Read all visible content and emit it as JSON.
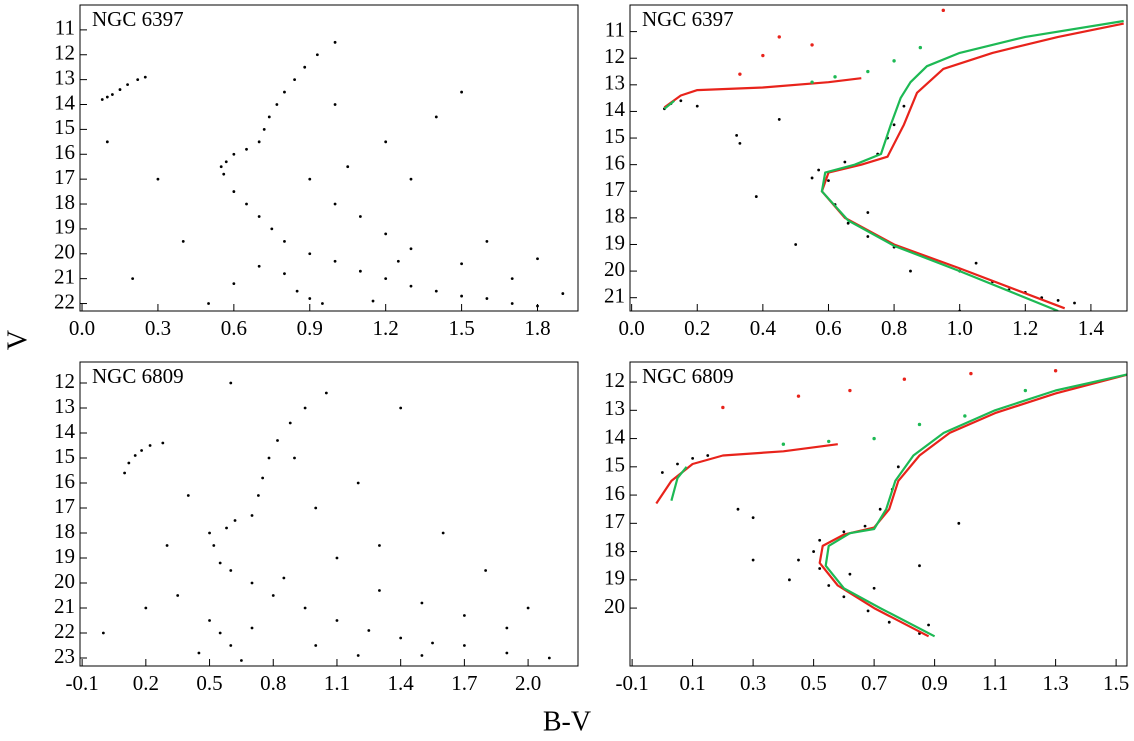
{
  "xlabel": "B-V",
  "ylabel": "V",
  "chart_data": [
    {
      "type": "scatter",
      "title": "NGC 6397",
      "xlim": [
        -0.008,
        1.96
      ],
      "ylim": [
        22.3,
        10.0
      ],
      "xticks": [
        {
          "value": 0,
          "label": "0.0"
        },
        0.3,
        0.6,
        0.9,
        1.2,
        1.5,
        1.8
      ],
      "yticks": [
        11,
        12,
        13,
        14,
        15,
        16,
        17,
        18,
        19,
        20,
        21,
        22
      ],
      "series": [
        {
          "color": "#000000",
          "mode": "points",
          "x": [
            0.08,
            0.1,
            0.12,
            0.15,
            0.18,
            0.22,
            0.25,
            0.55,
            0.56,
            0.57,
            0.6,
            0.65,
            0.7,
            0.72,
            0.74,
            0.77,
            0.8,
            0.84,
            0.88,
            0.93,
            1.0,
            0.6,
            0.65,
            0.7,
            0.75,
            0.8,
            0.9,
            1.0,
            1.1,
            1.2,
            1.3,
            1.4,
            1.5,
            1.6,
            1.7,
            1.8,
            0.9,
            1.0,
            1.1,
            1.2,
            1.3,
            1.5,
            1.7,
            1.9,
            0.85,
            0.95,
            0.7,
            1.05,
            1.2,
            1.4,
            1.3,
            0.4,
            0.3,
            0.2,
            0.1,
            1.6,
            1.8,
            0.5,
            1.0,
            1.5,
            0.6,
            0.8,
            0.9,
            1.15,
            1.25
          ],
          "values": [
            13.8,
            13.7,
            13.6,
            13.4,
            13.2,
            13.0,
            12.9,
            16.5,
            16.8,
            16.3,
            16.0,
            15.8,
            15.5,
            15.0,
            14.5,
            14.0,
            13.5,
            13.0,
            12.5,
            12.0,
            11.5,
            17.5,
            18.0,
            18.5,
            19.0,
            19.5,
            20.0,
            20.3,
            20.7,
            21.0,
            21.3,
            21.5,
            21.7,
            21.8,
            22.0,
            22.1,
            17.0,
            18.0,
            18.5,
            19.2,
            19.8,
            20.4,
            21.0,
            21.6,
            21.5,
            22.0,
            20.5,
            16.5,
            15.5,
            14.5,
            17.0,
            19.5,
            17.0,
            21.0,
            15.5,
            19.5,
            20.2,
            22.0,
            14.0,
            13.5,
            21.2,
            20.8,
            21.8,
            21.9,
            20.3
          ]
        }
      ]
    },
    {
      "type": "scatter",
      "title": "NGC 6397",
      "xlim": [
        -0.005,
        1.51
      ],
      "ylim": [
        21.5,
        10.0
      ],
      "xticks": [
        {
          "value": 0,
          "label": "0.0"
        },
        0.2,
        0.4,
        0.6,
        0.8,
        {
          "value": 1,
          "label": "1.0"
        },
        1.2,
        1.4
      ],
      "yticks": [
        11,
        12,
        13,
        14,
        15,
        16,
        17,
        18,
        19,
        20,
        21
      ],
      "series": [
        {
          "color": "#000000",
          "mode": "points",
          "x": [
            0.1,
            0.12,
            0.15,
            0.2,
            0.32,
            0.33,
            0.55,
            0.57,
            0.6,
            0.62,
            0.66,
            0.72,
            0.8,
            0.9,
            1.0,
            1.1,
            1.2,
            1.25,
            1.3,
            1.35,
            0.65,
            0.75,
            0.78,
            0.8,
            0.83,
            0.38,
            0.72,
            0.85,
            1.05,
            1.15,
            0.5,
            0.45,
            1.0
          ],
          "values": [
            13.9,
            13.7,
            13.6,
            13.8,
            14.9,
            15.2,
            16.5,
            16.2,
            16.6,
            17.5,
            18.2,
            18.7,
            19.1,
            19.5,
            20.0,
            20.4,
            20.8,
            21.0,
            21.1,
            21.2,
            15.9,
            15.6,
            15.0,
            14.5,
            13.8,
            17.2,
            17.8,
            20.0,
            19.7,
            20.7,
            19.0,
            14.3,
            21.5
          ]
        },
        {
          "color": "#e8231b",
          "mode": "line",
          "x": [
            0.1,
            0.15,
            0.2,
            0.4,
            0.6,
            0.7,
            null,
            1.32,
            1.0,
            0.8,
            0.65,
            0.58,
            0.6,
            0.7,
            0.78,
            0.83,
            0.87,
            0.95,
            1.1,
            1.3,
            1.5
          ],
          "values": [
            13.85,
            13.4,
            13.2,
            13.1,
            12.9,
            12.75,
            null,
            21.4,
            19.9,
            19.0,
            18.0,
            17.0,
            16.3,
            16.0,
            15.7,
            14.5,
            13.3,
            12.4,
            11.8,
            11.2,
            10.7
          ]
        },
        {
          "color": "#e8231b",
          "mode": "points",
          "x": [
            0.33,
            0.4,
            0.45,
            0.55,
            0.95
          ],
          "values": [
            12.6,
            11.9,
            11.2,
            11.5,
            10.2
          ]
        },
        {
          "color": "#1db954",
          "mode": "line",
          "x": [
            0.1,
            0.13,
            null,
            1.3,
            1.0,
            0.8,
            0.66,
            0.58,
            0.59,
            0.68,
            0.76,
            0.79,
            0.82,
            0.85,
            0.9,
            1.0,
            1.2,
            1.5
          ],
          "values": [
            13.9,
            13.6,
            null,
            21.5,
            20.0,
            19.05,
            18.1,
            17.0,
            16.3,
            16.0,
            15.6,
            14.5,
            13.5,
            12.9,
            12.3,
            11.8,
            11.2,
            10.6
          ]
        },
        {
          "color": "#1db954",
          "mode": "points",
          "x": [
            0.55,
            0.62,
            0.72,
            0.8,
            0.88
          ],
          "values": [
            12.9,
            12.7,
            12.5,
            12.1,
            11.6
          ]
        }
      ]
    },
    {
      "type": "scatter",
      "title": "NGC 6809",
      "xlim": [
        -0.11,
        2.235
      ],
      "ylim": [
        23.32,
        11.16
      ],
      "xticks": [
        -0.1,
        0.2,
        0.5,
        0.8,
        1.1,
        1.4,
        1.7,
        {
          "value": 2,
          "label": "2.0"
        }
      ],
      "yticks": [
        12,
        13,
        14,
        15,
        16,
        17,
        18,
        19,
        20,
        21,
        22,
        23
      ],
      "series": [
        {
          "color": "#000000",
          "mode": "points",
          "x": [
            0.1,
            0.12,
            0.15,
            0.18,
            0.22,
            0.28,
            0.5,
            0.52,
            0.55,
            0.58,
            0.62,
            0.7,
            0.73,
            0.75,
            0.78,
            0.82,
            0.88,
            0.95,
            1.05,
            0.6,
            0.7,
            0.8,
            0.95,
            1.1,
            1.25,
            1.4,
            1.55,
            0.5,
            0.55,
            0.6,
            0.7,
            0.45,
            0.65,
            1.0,
            1.2,
            1.5,
            1.7,
            1.9,
            2.1,
            1.3,
            1.5,
            1.7,
            1.9,
            1.1,
            1.3,
            1.0,
            1.2,
            0.9,
            0.35,
            0.2,
            0.0,
            0.3,
            1.6,
            1.8,
            2.0,
            0.85,
            0.4,
            1.4,
            0.6
          ],
          "values": [
            15.6,
            15.2,
            14.9,
            14.7,
            14.5,
            14.4,
            18.0,
            18.5,
            19.2,
            17.8,
            17.5,
            17.3,
            16.5,
            15.8,
            15.0,
            14.3,
            13.6,
            13.0,
            12.4,
            19.5,
            20.0,
            20.5,
            21.0,
            21.5,
            21.9,
            22.2,
            22.4,
            21.5,
            22.0,
            22.5,
            21.8,
            22.8,
            23.1,
            22.5,
            22.9,
            22.9,
            22.5,
            22.8,
            23.0,
            20.3,
            20.8,
            21.3,
            21.8,
            19.0,
            18.5,
            17.0,
            16.0,
            15.0,
            20.5,
            21.0,
            22.0,
            18.5,
            18.0,
            19.5,
            21.0,
            19.8,
            16.5,
            13.0,
            12.0
          ]
        }
      ]
    },
    {
      "type": "scatter",
      "title": "NGC 6809",
      "xlim": [
        -0.107,
        1.536
      ],
      "ylim": [
        22.05,
        11.29
      ],
      "xticks": [
        -0.1,
        0.1,
        0.3,
        0.5,
        0.7,
        0.9,
        1.1,
        1.3,
        1.5
      ],
      "yticks": [
        12,
        13,
        14,
        15,
        16,
        17,
        18,
        19,
        20
      ],
      "series": [
        {
          "color": "#000000",
          "mode": "points",
          "x": [
            0.0,
            0.05,
            0.1,
            0.15,
            0.25,
            0.3,
            0.5,
            0.52,
            0.55,
            0.6,
            0.68,
            0.75,
            0.85,
            0.52,
            0.6,
            0.67,
            0.72,
            0.76,
            0.78,
            0.45,
            0.62,
            0.88,
            0.42,
            0.7,
            0.98,
            0.85,
            0.3
          ],
          "values": [
            15.2,
            14.9,
            14.7,
            14.6,
            16.5,
            16.8,
            18.0,
            18.6,
            19.2,
            19.6,
            20.1,
            20.5,
            20.9,
            17.6,
            17.3,
            17.1,
            16.5,
            15.8,
            15.0,
            18.3,
            18.8,
            20.6,
            19.0,
            19.3,
            17.0,
            18.5,
            18.3
          ]
        },
        {
          "color": "#e8231b",
          "mode": "line",
          "x": [
            -0.02,
            0.03,
            0.1,
            0.2,
            0.4,
            0.58,
            null,
            0.88,
            0.7,
            0.58,
            0.52,
            0.53,
            0.6,
            0.7,
            0.75,
            0.78,
            0.85,
            0.95,
            1.1,
            1.3,
            1.55
          ],
          "values": [
            16.3,
            15.5,
            14.9,
            14.6,
            14.45,
            14.2,
            null,
            21.0,
            20.0,
            19.2,
            18.4,
            17.8,
            17.4,
            17.15,
            16.5,
            15.5,
            14.6,
            13.8,
            13.1,
            12.4,
            11.7
          ]
        },
        {
          "color": "#e8231b",
          "mode": "points",
          "x": [
            0.2,
            0.45,
            0.62,
            0.8,
            1.02,
            1.3
          ],
          "values": [
            12.9,
            12.5,
            12.3,
            11.9,
            11.7,
            11.6
          ]
        },
        {
          "color": "#1db954",
          "mode": "line",
          "x": [
            0.03,
            0.05,
            0.08,
            null,
            0.9,
            0.72,
            0.6,
            0.54,
            0.55,
            0.62,
            0.7,
            0.74,
            0.77,
            0.83,
            0.93,
            1.1,
            1.3,
            1.55
          ],
          "values": [
            16.2,
            15.4,
            15.0,
            null,
            21.0,
            20.0,
            19.3,
            18.5,
            17.8,
            17.35,
            17.2,
            16.5,
            15.5,
            14.6,
            13.8,
            13.0,
            12.3,
            11.7
          ]
        },
        {
          "color": "#1db954",
          "mode": "points",
          "x": [
            0.4,
            0.55,
            0.7,
            0.85,
            1.0,
            1.2
          ],
          "values": [
            14.2,
            14.1,
            14.0,
            13.5,
            13.2,
            12.3
          ]
        }
      ]
    }
  ]
}
